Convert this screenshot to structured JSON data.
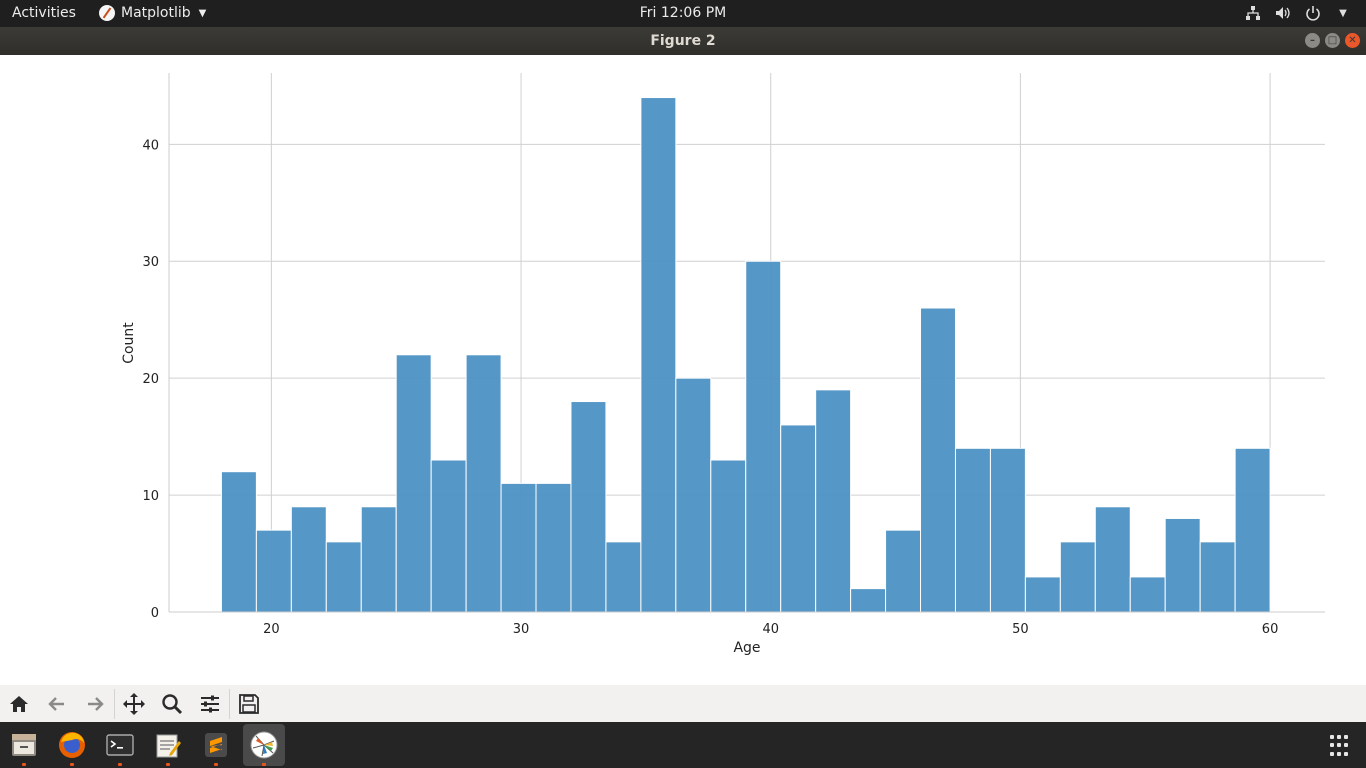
{
  "topbar": {
    "activities": "Activities",
    "app_name": "Matplotlib",
    "clock": "Fri 12:06 PM",
    "tray_icons": [
      "network-icon",
      "volume-icon",
      "power-icon",
      "chevron-down-icon"
    ]
  },
  "window": {
    "title": "Figure 2",
    "controls": [
      "minimize",
      "maximize",
      "close"
    ],
    "close_color": "#e9572b"
  },
  "toolbar": {
    "buttons": [
      "home-icon",
      "back-icon",
      "forward-icon",
      "pan-icon",
      "zoom-icon",
      "configure-subplots-icon",
      "save-icon"
    ]
  },
  "dock": {
    "apps": [
      "files-icon",
      "firefox-icon",
      "terminal-icon",
      "text-editor-icon",
      "sublime-text-icon",
      "matplotlib-icon"
    ],
    "show_apps_icon": "grid-icon"
  },
  "chart_data": {
    "type": "bar",
    "title": "",
    "xlabel": "Age",
    "ylabel": "Count",
    "xlim": [
      15.9,
      62.2
    ],
    "ylim": [
      0,
      46.1
    ],
    "xticks": [
      20,
      30,
      40,
      50,
      60
    ],
    "yticks": [
      0,
      10,
      20,
      30,
      40
    ],
    "grid": true,
    "bar_color": "#4c91c4",
    "bin_start": 18,
    "bin_width": 1.4,
    "values": [
      12,
      7,
      9,
      6,
      9,
      22,
      13,
      22,
      11,
      11,
      18,
      6,
      44,
      20,
      13,
      30,
      16,
      19,
      2,
      7,
      26,
      14,
      14,
      3,
      6,
      9,
      3,
      8,
      6,
      14
    ]
  }
}
